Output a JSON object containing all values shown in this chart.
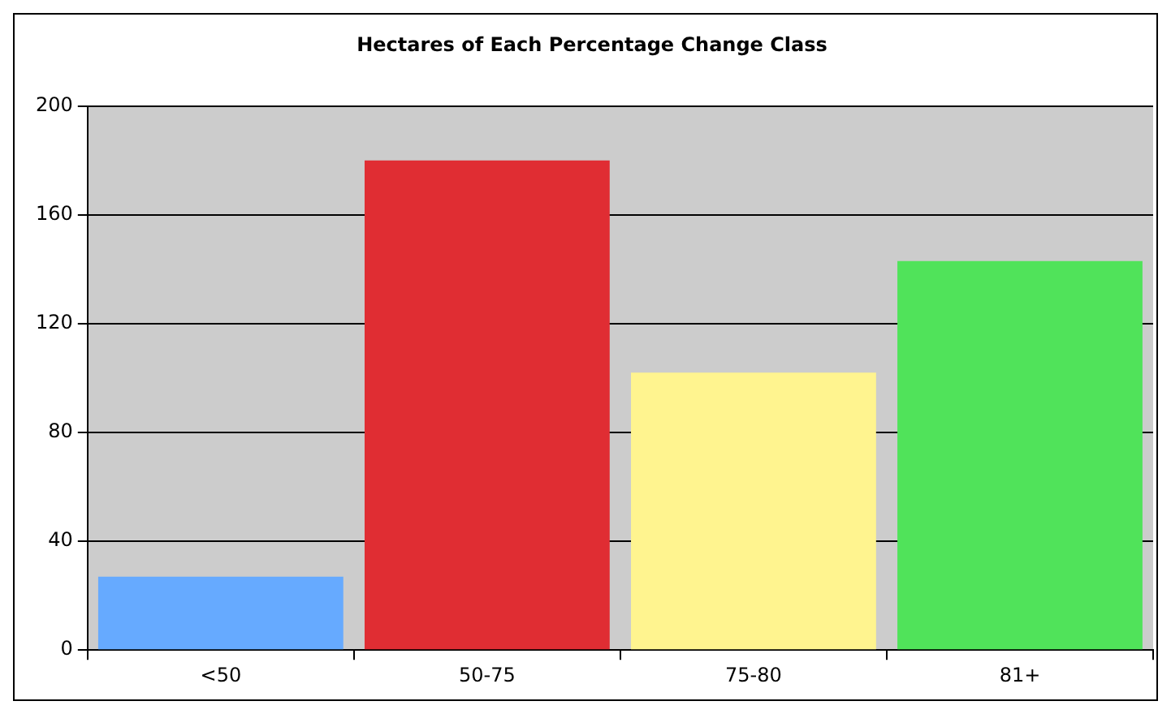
{
  "chart_data": {
    "type": "bar",
    "title": "Hectares of Each Percentage Change Class",
    "categories": [
      "<50",
      "50-75",
      "75-80",
      "81+"
    ],
    "values": [
      27,
      180,
      102,
      143
    ],
    "colors": [
      "#66aaff",
      "#e02d33",
      "#fff48f",
      "#50e35a"
    ],
    "ylim": [
      0,
      200
    ],
    "yticks": [
      0,
      40,
      80,
      120,
      160,
      200
    ],
    "grid": "y",
    "legend": false
  }
}
